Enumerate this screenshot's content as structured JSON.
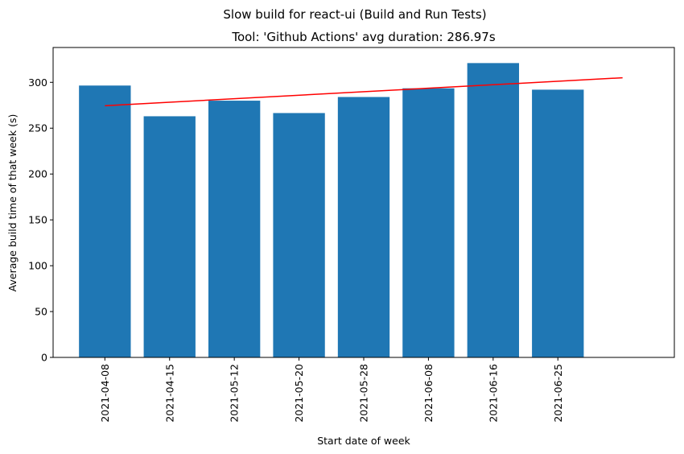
{
  "chart_data": {
    "type": "bar",
    "suptitle": "Slow build for react-ui (Build and Run Tests)",
    "title": "Tool: 'Github Actions' avg duration: 286.97s",
    "xlabel": "Start date of week",
    "ylabel": "Average build time of that week (s)",
    "categories": [
      "2021-04-08",
      "2021-04-15",
      "2021-05-12",
      "2021-05-20",
      "2021-05-28",
      "2021-06-08",
      "2021-06-16",
      "2021-06-25"
    ],
    "values": [
      296.5,
      263,
      280,
      266.5,
      284,
      293.5,
      321,
      292
    ],
    "ylim": [
      0,
      338
    ],
    "yticks": [
      0,
      50,
      100,
      150,
      200,
      250,
      300
    ],
    "bar_color": "#1f77b4",
    "trend_line": {
      "color": "#ff0000",
      "start": 274.5,
      "end": 305
    },
    "grid": false
  }
}
